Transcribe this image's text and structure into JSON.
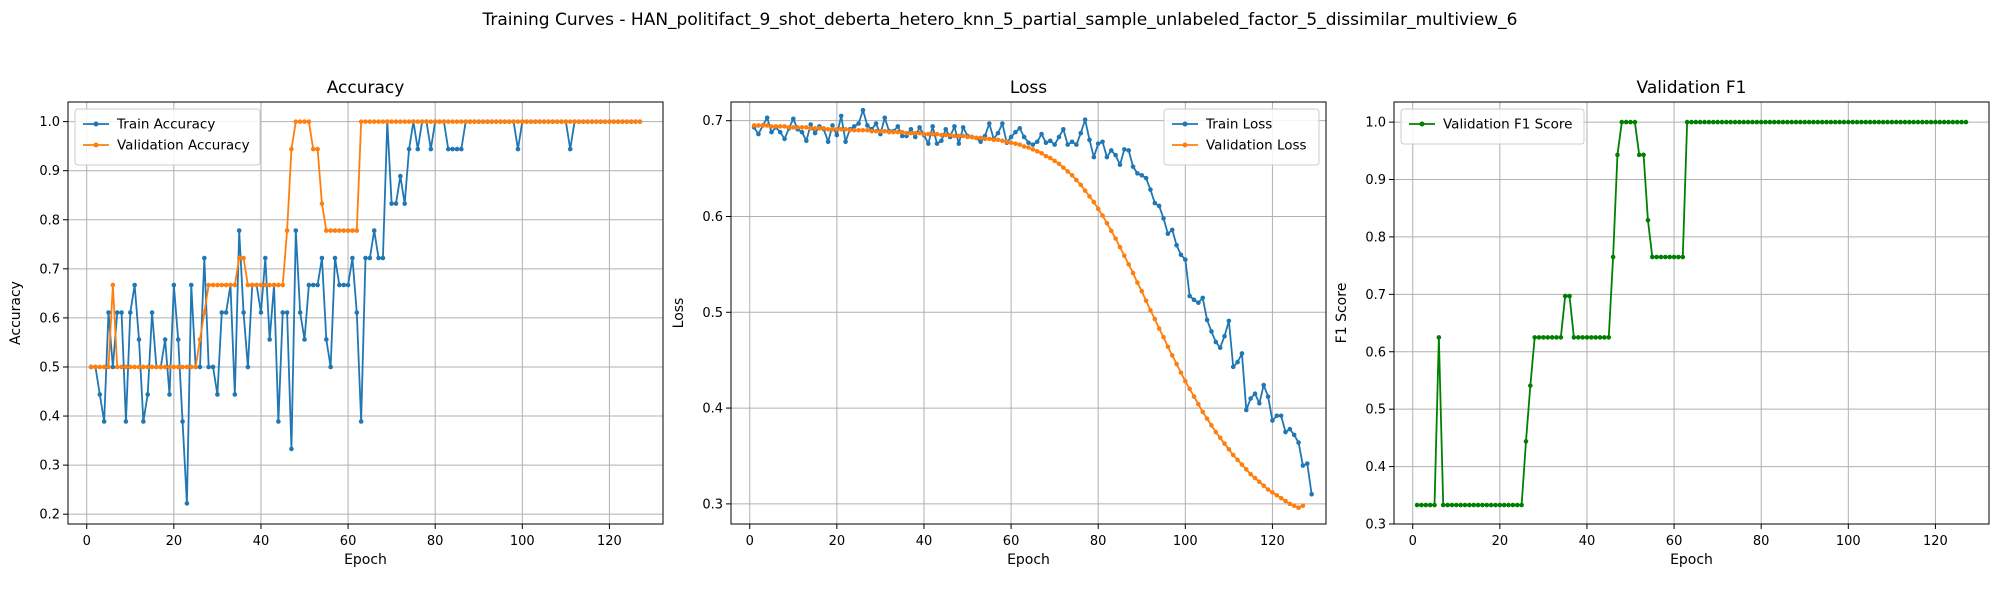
{
  "figure": {
    "suptitle": "Training Curves - HAN_politifact_9_shot_deberta_hetero_knn_5_partial_sample_unlabeled_factor_5_dissimilar_multiview_6"
  },
  "colors": {
    "train": "#1f77b4",
    "validation": "#ff7f0e",
    "f1": "#008000",
    "grid": "#b0b0b0"
  },
  "chart_data": [
    {
      "type": "line",
      "title": "Accuracy",
      "xlabel": "Epoch",
      "ylabel": "Accuracy",
      "xlim": [
        -4.3,
        132.3
      ],
      "ylim": [
        0.18,
        1.04
      ],
      "xticks": [
        0,
        20,
        40,
        60,
        80,
        100,
        120
      ],
      "yticks": [
        0.2,
        0.3,
        0.4,
        0.5,
        0.6,
        0.7,
        0.8,
        0.9,
        1.0
      ],
      "ytick_labels": [
        "0.2",
        "0.3",
        "0.4",
        "0.5",
        "0.6",
        "0.7",
        "0.8",
        "0.9",
        "1.0"
      ],
      "grid": true,
      "legend_position": "top-left",
      "series": [
        {
          "name": "Train Accuracy",
          "color": "#1f77b4",
          "values": [
            0.5,
            0.5,
            0.444,
            0.389,
            0.611,
            0.5,
            0.611,
            0.611,
            0.389,
            0.611,
            0.667,
            0.556,
            0.389,
            0.444,
            0.611,
            0.5,
            0.5,
            0.556,
            0.444,
            0.667,
            0.556,
            0.389,
            0.222,
            0.667,
            0.5,
            0.5,
            0.722,
            0.5,
            0.5,
            0.444,
            0.611,
            0.611,
            0.667,
            0.444,
            0.778,
            0.611,
            0.5,
            0.667,
            0.667,
            0.611,
            0.722,
            0.556,
            0.667,
            0.389,
            0.611,
            0.611,
            0.333,
            0.778,
            0.611,
            0.556,
            0.667,
            0.667,
            0.667,
            0.722,
            0.556,
            0.5,
            0.722,
            0.667,
            0.667,
            0.667,
            0.722,
            0.611,
            0.389,
            0.722,
            0.722,
            0.778,
            0.722,
            0.722,
            1.0,
            0.833,
            0.833,
            0.889,
            0.833,
            0.944,
            1.0,
            0.944,
            1.0,
            1.0,
            0.944,
            1.0,
            1.0,
            1.0,
            0.944,
            0.944,
            0.944,
            0.944,
            1.0,
            1.0,
            1.0,
            1.0,
            1.0,
            1.0,
            1.0,
            1.0,
            1.0,
            1.0,
            1.0,
            1.0,
            0.944,
            1.0,
            1.0,
            1.0,
            1.0,
            1.0,
            1.0,
            1.0,
            1.0,
            1.0,
            1.0,
            1.0,
            0.944,
            1.0,
            1.0,
            1.0,
            1.0,
            1.0,
            1.0,
            1.0,
            1.0,
            1.0,
            1.0,
            1.0,
            1.0,
            1.0,
            1.0,
            1.0,
            1.0
          ]
        },
        {
          "name": "Validation Accuracy",
          "color": "#ff7f0e",
          "values": [
            0.5,
            0.5,
            0.5,
            0.5,
            0.5,
            0.667,
            0.5,
            0.5,
            0.5,
            0.5,
            0.5,
            0.5,
            0.5,
            0.5,
            0.5,
            0.5,
            0.5,
            0.5,
            0.5,
            0.5,
            0.5,
            0.5,
            0.5,
            0.5,
            0.5,
            0.556,
            0.611,
            0.667,
            0.667,
            0.667,
            0.667,
            0.667,
            0.667,
            0.667,
            0.722,
            0.722,
            0.667,
            0.667,
            0.667,
            0.667,
            0.667,
            0.667,
            0.667,
            0.667,
            0.667,
            0.778,
            0.944,
            1.0,
            1.0,
            1.0,
            1.0,
            0.944,
            0.944,
            0.833,
            0.778,
            0.778,
            0.778,
            0.778,
            0.778,
            0.778,
            0.778,
            0.778,
            1.0,
            1.0,
            1.0,
            1.0,
            1.0,
            1.0,
            1.0,
            1.0,
            1.0,
            1.0,
            1.0,
            1.0,
            1.0,
            1.0,
            1.0,
            1.0,
            1.0,
            1.0,
            1.0,
            1.0,
            1.0,
            1.0,
            1.0,
            1.0,
            1.0,
            1.0,
            1.0,
            1.0,
            1.0,
            1.0,
            1.0,
            1.0,
            1.0,
            1.0,
            1.0,
            1.0,
            1.0,
            1.0,
            1.0,
            1.0,
            1.0,
            1.0,
            1.0,
            1.0,
            1.0,
            1.0,
            1.0,
            1.0,
            1.0,
            1.0,
            1.0,
            1.0,
            1.0,
            1.0,
            1.0,
            1.0,
            1.0,
            1.0,
            1.0,
            1.0,
            1.0,
            1.0,
            1.0,
            1.0,
            1.0
          ]
        }
      ]
    },
    {
      "type": "line",
      "title": "Loss",
      "xlabel": "Epoch",
      "ylabel": "Loss",
      "xlim": [
        -4.3,
        132.3
      ],
      "ylim": [
        0.279,
        0.7195
      ],
      "xticks": [
        0,
        20,
        40,
        60,
        80,
        100,
        120
      ],
      "yticks": [
        0.3,
        0.4,
        0.5,
        0.6,
        0.7
      ],
      "ytick_labels": [
        "0.3",
        "0.4",
        "0.5",
        "0.6",
        "0.7"
      ],
      "grid": true,
      "legend_position": "top-right",
      "series": [
        {
          "name": "Train Loss",
          "color": "#1f77b4",
          "values": [
            0.693,
            0.686,
            0.695,
            0.703,
            0.688,
            0.693,
            0.688,
            0.681,
            0.692,
            0.702,
            0.691,
            0.688,
            0.679,
            0.696,
            0.687,
            0.694,
            0.691,
            0.678,
            0.695,
            0.685,
            0.705,
            0.678,
            0.691,
            0.694,
            0.697,
            0.711,
            0.695,
            0.691,
            0.697,
            0.686,
            0.703,
            0.689,
            0.689,
            0.694,
            0.684,
            0.684,
            0.691,
            0.683,
            0.693,
            0.685,
            0.676,
            0.694,
            0.676,
            0.679,
            0.691,
            0.683,
            0.694,
            0.676,
            0.693,
            0.684,
            0.683,
            0.682,
            0.678,
            0.684,
            0.697,
            0.681,
            0.687,
            0.697,
            0.677,
            0.683,
            0.688,
            0.692,
            0.683,
            0.677,
            0.675,
            0.678,
            0.686,
            0.677,
            0.679,
            0.675,
            0.683,
            0.691,
            0.675,
            0.678,
            0.675,
            0.687,
            0.701,
            0.68,
            0.662,
            0.676,
            0.678,
            0.662,
            0.669,
            0.664,
            0.654,
            0.67,
            0.669,
            0.652,
            0.645,
            0.643,
            0.64,
            0.628,
            0.614,
            0.611,
            0.598,
            0.582,
            0.586,
            0.57,
            0.56,
            0.555,
            0.517,
            0.513,
            0.51,
            0.515,
            0.492,
            0.48,
            0.469,
            0.463,
            0.475,
            0.491,
            0.443,
            0.448,
            0.457,
            0.398,
            0.41,
            0.415,
            0.405,
            0.424,
            0.412,
            0.387,
            0.392,
            0.392,
            0.375,
            0.378,
            0.372,
            0.364,
            0.34,
            0.342,
            0.31
          ]
        },
        {
          "name": "Validation Loss",
          "color": "#ff7f0e",
          "values": [
            0.695,
            0.695,
            0.695,
            0.695,
            0.694,
            0.694,
            0.694,
            0.694,
            0.693,
            0.693,
            0.693,
            0.693,
            0.693,
            0.692,
            0.692,
            0.692,
            0.692,
            0.691,
            0.691,
            0.691,
            0.691,
            0.691,
            0.69,
            0.69,
            0.69,
            0.69,
            0.69,
            0.689,
            0.689,
            0.689,
            0.689,
            0.688,
            0.688,
            0.688,
            0.688,
            0.687,
            0.687,
            0.687,
            0.687,
            0.686,
            0.686,
            0.686,
            0.686,
            0.685,
            0.685,
            0.685,
            0.684,
            0.684,
            0.684,
            0.683,
            0.683,
            0.682,
            0.682,
            0.681,
            0.681,
            0.68,
            0.68,
            0.679,
            0.678,
            0.677,
            0.676,
            0.675,
            0.673,
            0.672,
            0.67,
            0.668,
            0.666,
            0.663,
            0.661,
            0.658,
            0.655,
            0.651,
            0.647,
            0.643,
            0.638,
            0.633,
            0.627,
            0.621,
            0.615,
            0.608,
            0.601,
            0.593,
            0.585,
            0.577,
            0.568,
            0.559,
            0.55,
            0.541,
            0.531,
            0.522,
            0.512,
            0.502,
            0.493,
            0.483,
            0.474,
            0.464,
            0.455,
            0.446,
            0.437,
            0.428,
            0.42,
            0.412,
            0.404,
            0.396,
            0.389,
            0.382,
            0.375,
            0.369,
            0.363,
            0.357,
            0.351,
            0.346,
            0.341,
            0.336,
            0.331,
            0.327,
            0.323,
            0.319,
            0.315,
            0.312,
            0.309,
            0.306,
            0.303,
            0.3,
            0.298,
            0.296,
            0.298
          ]
        }
      ]
    },
    {
      "type": "line",
      "title": "Validation F1",
      "xlabel": "Epoch",
      "ylabel": "F1 Score",
      "xlim": [
        -4.3,
        132.3
      ],
      "ylim": [
        0.3,
        1.035
      ],
      "xticks": [
        0,
        20,
        40,
        60,
        80,
        100,
        120
      ],
      "yticks": [
        0.3,
        0.4,
        0.5,
        0.6,
        0.7,
        0.8,
        0.9,
        1.0
      ],
      "ytick_labels": [
        "0.3",
        "0.4",
        "0.5",
        "0.6",
        "0.7",
        "0.8",
        "0.9",
        "1.0"
      ],
      "grid": true,
      "legend_position": "top-left",
      "series": [
        {
          "name": "Validation F1 Score",
          "color": "#008000",
          "values": [
            0.333,
            0.333,
            0.333,
            0.333,
            0.333,
            0.625,
            0.333,
            0.333,
            0.333,
            0.333,
            0.333,
            0.333,
            0.333,
            0.333,
            0.333,
            0.333,
            0.333,
            0.333,
            0.333,
            0.333,
            0.333,
            0.333,
            0.333,
            0.333,
            0.333,
            0.444,
            0.541,
            0.625,
            0.625,
            0.625,
            0.625,
            0.625,
            0.625,
            0.625,
            0.697,
            0.697,
            0.625,
            0.625,
            0.625,
            0.625,
            0.625,
            0.625,
            0.625,
            0.625,
            0.625,
            0.765,
            0.943,
            1.0,
            1.0,
            1.0,
            1.0,
            0.943,
            0.943,
            0.829,
            0.765,
            0.765,
            0.765,
            0.765,
            0.765,
            0.765,
            0.765,
            0.765,
            1.0,
            1.0,
            1.0,
            1.0,
            1.0,
            1.0,
            1.0,
            1.0,
            1.0,
            1.0,
            1.0,
            1.0,
            1.0,
            1.0,
            1.0,
            1.0,
            1.0,
            1.0,
            1.0,
            1.0,
            1.0,
            1.0,
            1.0,
            1.0,
            1.0,
            1.0,
            1.0,
            1.0,
            1.0,
            1.0,
            1.0,
            1.0,
            1.0,
            1.0,
            1.0,
            1.0,
            1.0,
            1.0,
            1.0,
            1.0,
            1.0,
            1.0,
            1.0,
            1.0,
            1.0,
            1.0,
            1.0,
            1.0,
            1.0,
            1.0,
            1.0,
            1.0,
            1.0,
            1.0,
            1.0,
            1.0,
            1.0,
            1.0,
            1.0,
            1.0,
            1.0,
            1.0,
            1.0,
            1.0,
            1.0
          ]
        }
      ]
    }
  ]
}
